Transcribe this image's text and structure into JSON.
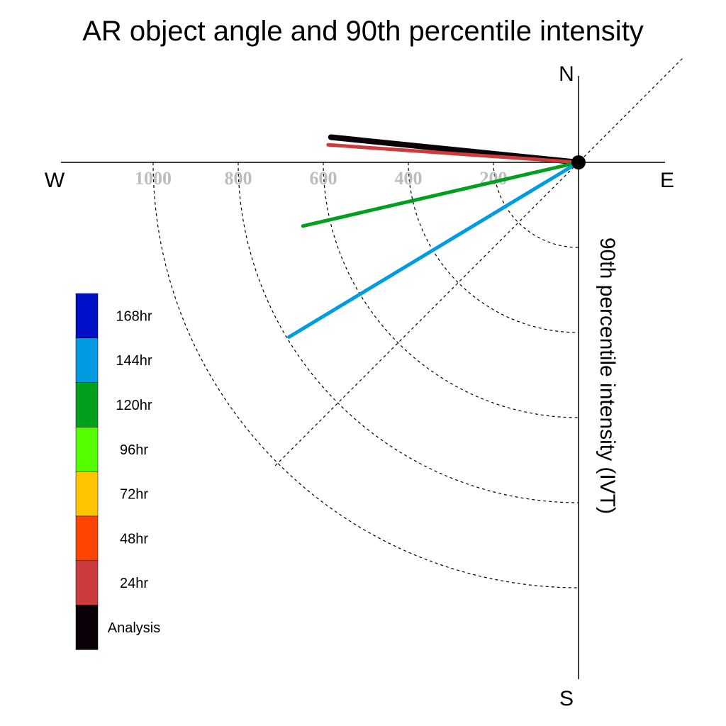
{
  "chart_data": {
    "type": "polar",
    "title": "AR object angle and 90th percentile intensity",
    "ylabel": "90th percentile intensity (IVT)",
    "directions": {
      "north": "N",
      "south": "S",
      "east": "E",
      "west": "W"
    },
    "radial_ticks": [
      200,
      400,
      600,
      800,
      1000
    ],
    "radial_tick_labels": [
      "200",
      "400",
      "600",
      "800",
      "1000"
    ],
    "rmax": 1200,
    "grid": true,
    "legend_placement": "left",
    "legend": [
      {
        "label": "168hr",
        "color": "#0010c8"
      },
      {
        "label": "144hr",
        "color": "#009be0"
      },
      {
        "label": "120hr",
        "color": "#00a01e"
      },
      {
        "label": "96hr",
        "color": "#55ff00"
      },
      {
        "label": "72hr",
        "color": "#ffc400"
      },
      {
        "label": "48hr",
        "color": "#ff4400"
      },
      {
        "label": "24hr",
        "color": "#cc3c3c"
      },
      {
        "label": "Analysis",
        "color": "#0a0008"
      }
    ],
    "series": [
      {
        "name": "Analysis",
        "color": "#0a0008",
        "angle_deg": 174.2,
        "intensity": 585
      },
      {
        "name": "24hr",
        "color": "#cc3c3c",
        "angle_deg": 176.0,
        "intensity": 590
      },
      {
        "name": "120hr",
        "color": "#00a01e",
        "angle_deg": 193.0,
        "intensity": 665
      },
      {
        "name": "144hr",
        "color": "#009be0",
        "angle_deg": 211.1,
        "intensity": 795
      }
    ]
  }
}
